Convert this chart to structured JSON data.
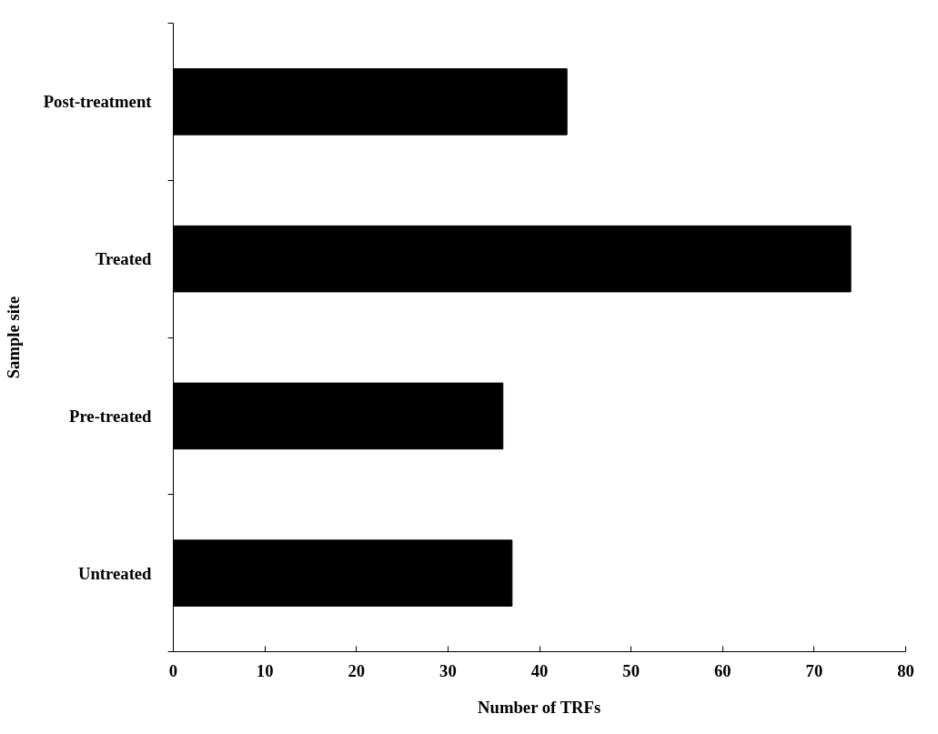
{
  "chart_data": {
    "type": "bar",
    "orientation": "horizontal",
    "xlabel": "Number of TRFs",
    "ylabel": "Sample site",
    "categories": [
      "Post-treatment",
      "Treated",
      "Pre-treated",
      "Untreated"
    ],
    "values": [
      43,
      74,
      36,
      37
    ],
    "color": "#000000",
    "xlim": [
      0,
      80
    ],
    "xticks": [
      0,
      10,
      20,
      30,
      40,
      50,
      60,
      70,
      80
    ],
    "grid": false
  }
}
